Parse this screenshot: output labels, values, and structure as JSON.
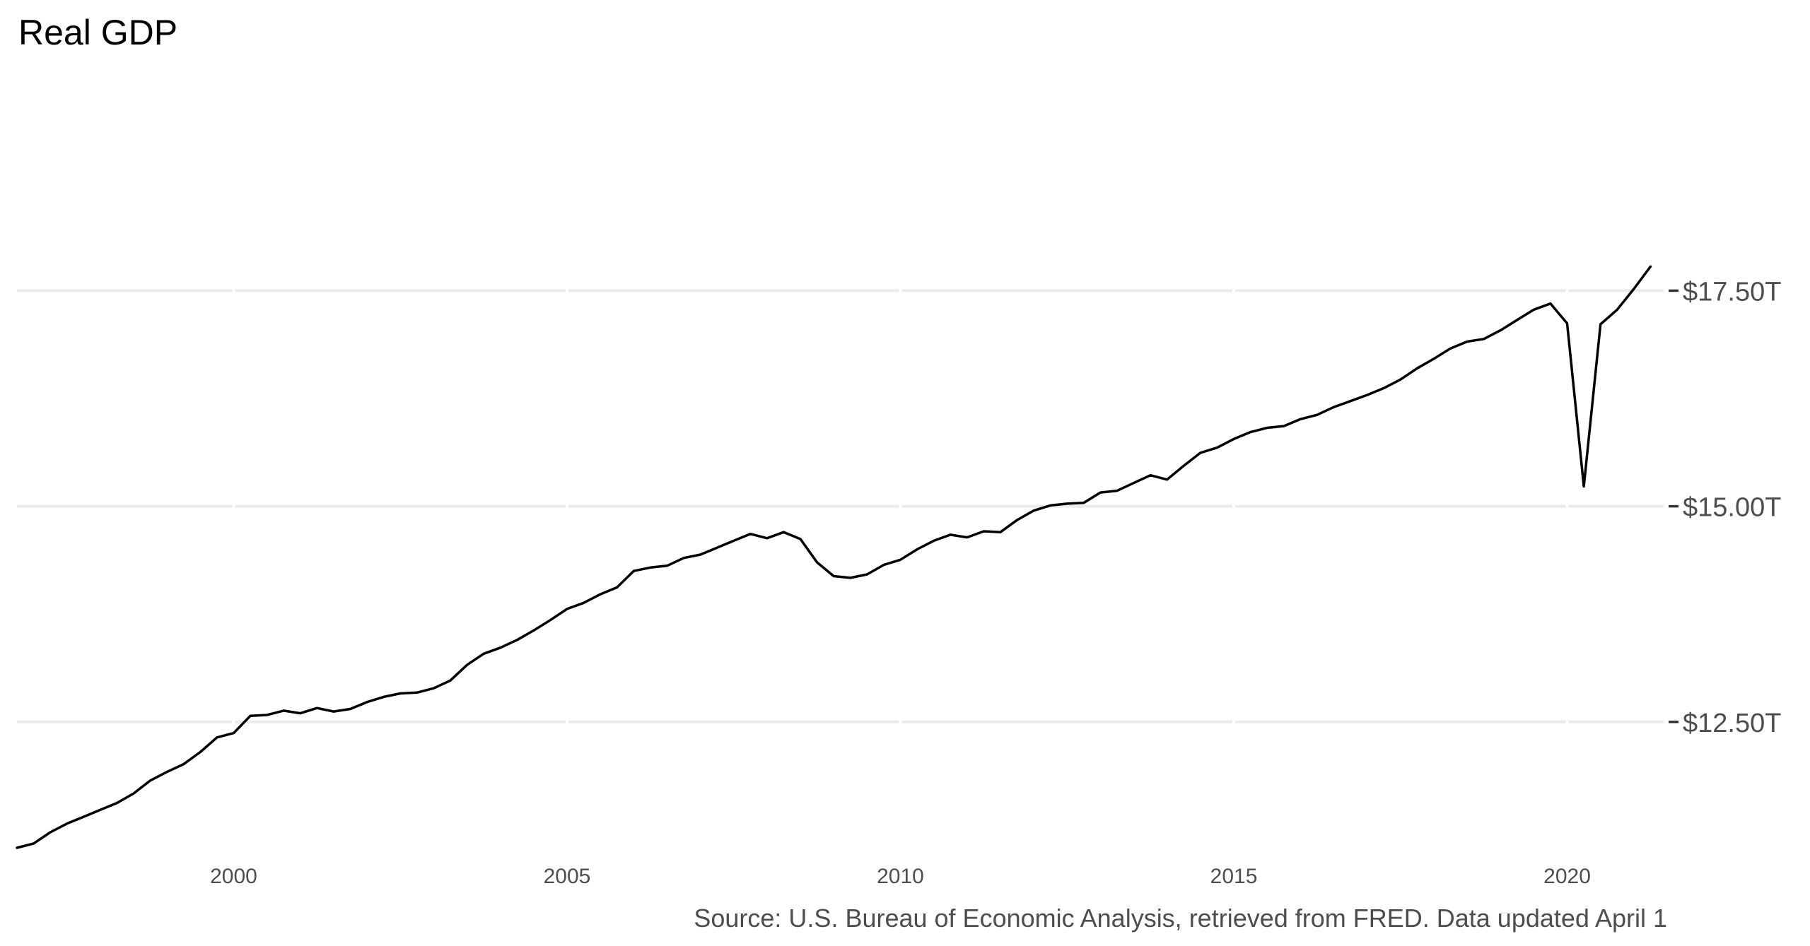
{
  "chart_data": {
    "type": "line",
    "title": "Real GDP",
    "caption": "Source: U.S. Bureau of Economic Analysis, retrieved from FRED. Data updated April 1",
    "xlabel": "",
    "ylabel": "",
    "x_ticks": [
      2000,
      2005,
      2010,
      2015,
      2020
    ],
    "x_tick_labels": [
      "2000",
      "2005",
      "2010",
      "2015",
      "2020"
    ],
    "y_ticks": [
      12.5,
      15.0,
      17.5
    ],
    "y_tick_labels": [
      "$12.50T",
      "$15.00T",
      "$17.50T"
    ],
    "y_axis_position": "right",
    "xlim": [
      1996.75,
      2021.5
    ],
    "ylim": [
      11.04,
      19.74
    ],
    "grid": "horizontal major",
    "legend": "none",
    "colors": {
      "line": "#000000",
      "grid": "#ebebeb",
      "tick_text": "#4d4d4d",
      "title_text": "#000000",
      "caption_text": "#4d4d4d",
      "background": "#ffffff"
    },
    "series": [
      {
        "x": [
          1996.75,
          1997.0,
          1997.25,
          1997.5,
          1997.75,
          1998.0,
          1998.25,
          1998.5,
          1998.75,
          1999.0,
          1999.25,
          1999.5,
          1999.75,
          2000.0,
          2000.25,
          2000.5,
          2000.75,
          2001.0,
          2001.25,
          2001.5,
          2001.75,
          2002.0,
          2002.25,
          2002.5,
          2002.75,
          2003.0,
          2003.25,
          2003.5,
          2003.75,
          2004.0,
          2004.25,
          2004.5,
          2004.75,
          2005.0,
          2005.25,
          2005.5,
          2005.75,
          2006.0,
          2006.25,
          2006.5,
          2006.75,
          2007.0,
          2007.25,
          2007.5,
          2007.75,
          2008.0,
          2008.25,
          2008.5,
          2008.75,
          2009.0,
          2009.25,
          2009.5,
          2009.75,
          2010.0,
          2010.25,
          2010.5,
          2010.75,
          2011.0,
          2011.25,
          2011.5,
          2011.75,
          2012.0,
          2012.25,
          2012.5,
          2012.75,
          2013.0,
          2013.25,
          2013.5,
          2013.75,
          2014.0,
          2014.25,
          2014.5,
          2014.75,
          2015.0,
          2015.25,
          2015.5,
          2015.75,
          2016.0,
          2016.25,
          2016.5,
          2016.75,
          2017.0,
          2017.25,
          2017.5,
          2017.75,
          2018.0,
          2018.25,
          2018.5,
          2018.75,
          2019.0,
          2019.25,
          2019.5,
          2019.75,
          2020.0,
          2020.25,
          2020.5,
          2020.75,
          2021.0,
          2021.25
        ],
        "values": [
          11.04,
          11.09,
          11.22,
          11.32,
          11.4,
          11.48,
          11.56,
          11.67,
          11.82,
          11.92,
          12.01,
          12.15,
          12.32,
          12.37,
          12.57,
          12.58,
          12.63,
          12.6,
          12.66,
          12.62,
          12.65,
          12.73,
          12.79,
          12.83,
          12.84,
          12.89,
          12.98,
          13.16,
          13.29,
          13.36,
          13.45,
          13.56,
          13.68,
          13.81,
          13.88,
          13.98,
          14.06,
          14.25,
          14.29,
          14.31,
          14.4,
          14.44,
          14.52,
          14.6,
          14.68,
          14.63,
          14.7,
          14.62,
          14.35,
          14.19,
          14.17,
          14.21,
          14.32,
          14.38,
          14.5,
          14.6,
          14.67,
          14.64,
          14.71,
          14.7,
          14.84,
          14.95,
          15.01,
          15.03,
          15.04,
          15.16,
          15.18,
          15.27,
          15.36,
          15.31,
          15.47,
          15.62,
          15.68,
          15.78,
          15.86,
          15.91,
          15.93,
          16.01,
          16.06,
          16.15,
          16.22,
          16.29,
          16.37,
          16.47,
          16.6,
          16.71,
          16.83,
          16.91,
          16.94,
          17.04,
          17.16,
          17.28,
          17.35,
          17.12,
          15.23,
          17.11,
          17.28,
          17.52,
          17.78
        ]
      }
    ]
  }
}
